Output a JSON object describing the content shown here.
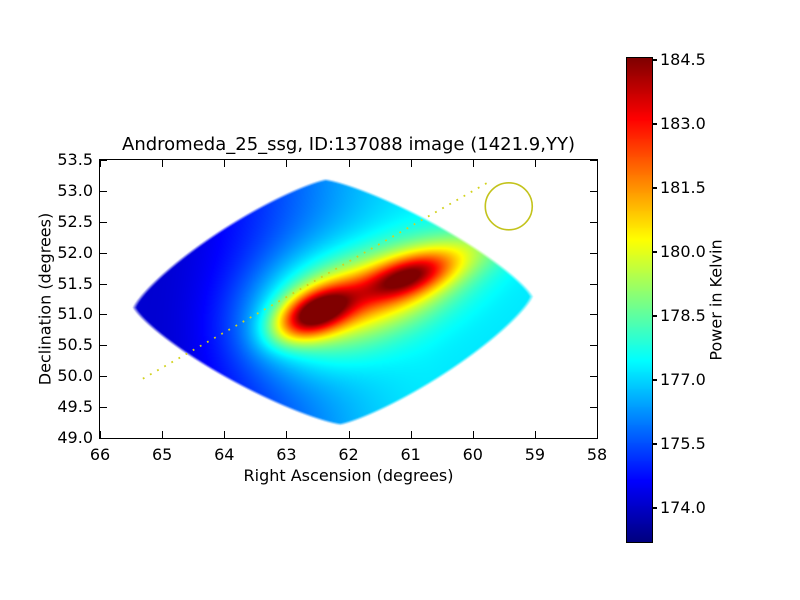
{
  "title": "Andromeda_25_ssg, ID:137088 image (1421.9,YY)",
  "axes": {
    "xlabel": "Right Ascension (degrees)",
    "ylabel": "Declination (degrees)",
    "x_tick_labels": [
      "66",
      "65",
      "64",
      "63",
      "62",
      "61",
      "60",
      "59",
      "58"
    ],
    "y_tick_labels": [
      "53.5",
      "53.0",
      "52.5",
      "52.0",
      "51.5",
      "51.0",
      "50.5",
      "50.0",
      "49.5",
      "49.0"
    ],
    "x_range": [
      66,
      58
    ],
    "y_range": [
      49.0,
      53.5
    ]
  },
  "colorbar": {
    "label": "Power in Kelvin",
    "tick_labels": [
      "184.5",
      "183.0",
      "181.5",
      "180.0",
      "178.5",
      "177.0",
      "175.5",
      "174.0"
    ],
    "tick_values": [
      184.5,
      183.0,
      181.5,
      180.0,
      178.5,
      177.0,
      175.5,
      174.0
    ],
    "vmin": 173.2,
    "vmax": 184.55,
    "colormap": "jet"
  },
  "chart_data": {
    "type": "heatmap",
    "title": "Andromeda_25_ssg, ID:137088 image (1421.9,YY)",
    "xlabel": "Right Ascension (degrees)",
    "ylabel": "Declination (degrees)",
    "x_range": [
      66,
      58
    ],
    "y_range": [
      49.0,
      53.5
    ],
    "value_label": "Power in Kelvin",
    "value_range": [
      173.2,
      184.55
    ],
    "colormap": "jet",
    "footprint": {
      "shape": "rounded-diamond",
      "center": {
        "ra": 62.25,
        "dec": 51.2
      },
      "half_diag_ra": 3.2,
      "half_diag_dec": 1.98,
      "edge_tilt": 0.028,
      "shear_u": -0.06,
      "corner_power": 1.25
    },
    "background": {
      "kelvin_at_high_ra": 174.1,
      "kelvin_at_low_ra": 177.2,
      "ramp_start_ra": 65.2,
      "ramp_end_ra": 60.6
    },
    "sources": [
      {
        "name": "primary-hotspot",
        "ra": 62.55,
        "dec": 51.02,
        "amp_kelvin": 6.2,
        "sigma_major": 0.45,
        "sigma_minor": 0.24,
        "angle_deg": 25,
        "peak_kelvin": 184.6
      },
      {
        "name": "primary-halo",
        "ra": 62.48,
        "dec": 51.05,
        "amp_kelvin": 3.0,
        "sigma_major": 0.85,
        "sigma_minor": 0.62,
        "angle_deg": 15
      },
      {
        "name": "secondary-hotspot",
        "ra": 61.05,
        "dec": 51.62,
        "amp_kelvin": 3.9,
        "sigma_major": 0.5,
        "sigma_minor": 0.21,
        "angle_deg": 19,
        "peak_kelvin": 182.9
      },
      {
        "name": "secondary-halo",
        "ra": 61.02,
        "dec": 51.57,
        "amp_kelvin": 2.2,
        "sigma_major": 0.75,
        "sigma_minor": 0.45,
        "angle_deg": 19
      },
      {
        "name": "bridge",
        "ra": 61.78,
        "dec": 51.28,
        "amp_kelvin": 1.5,
        "sigma_major": 0.7,
        "sigma_minor": 0.38,
        "angle_deg": 15
      },
      {
        "name": "northeast-streak",
        "ra": 60.1,
        "dec": 52.0,
        "amp_kelvin": 1.3,
        "sigma_major": 0.8,
        "sigma_minor": 0.3,
        "angle_deg": 22
      }
    ]
  },
  "overlays": {
    "beam_circle": {
      "ra": 59.42,
      "dec": 52.75,
      "radius_deg": 0.378,
      "color": "#c3c31c"
    },
    "scan_line": {
      "ra_start": 65.31,
      "dec_start": 49.96,
      "ra_end": 59.75,
      "dec_end": 53.14,
      "color": "#d2d21d",
      "style": "dotted"
    }
  }
}
